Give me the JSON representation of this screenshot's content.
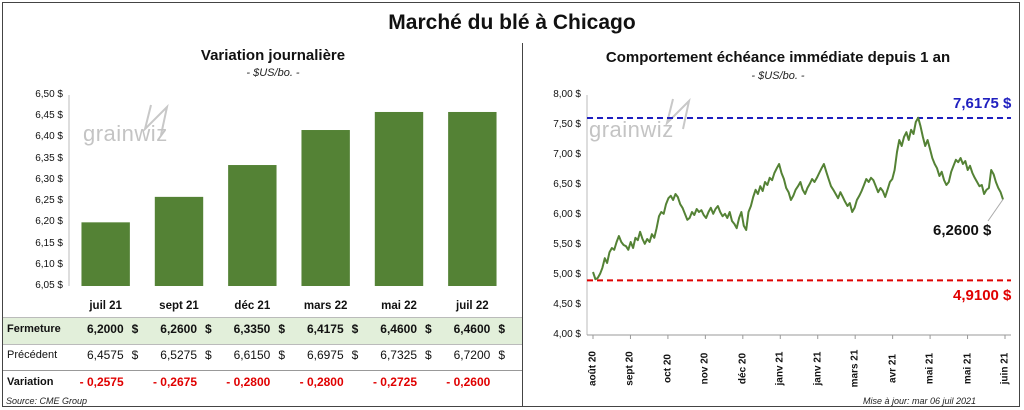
{
  "title": "Marché du blé à Chicago",
  "source": "Source: CME Group",
  "updated": "Mise à jour: mar 06 juil 2021",
  "watermark": "grainwiz",
  "colors": {
    "bar": "#548235",
    "line": "#548235",
    "high": "#1f1fbf",
    "low": "#e00000",
    "row_highlight": "#e2efda",
    "negative": "#e00000"
  },
  "chart_data": [
    {
      "type": "bar",
      "title": "Variation journalière",
      "subtitle": "- $US/bo. -",
      "categories": [
        "juil 21",
        "sept 21",
        "déc 21",
        "mars 22",
        "mai 22",
        "juil 22"
      ],
      "values": [
        6.2,
        6.26,
        6.335,
        6.4175,
        6.46,
        6.46
      ],
      "ylim": [
        6.05,
        6.5
      ],
      "yticks": [
        "6,05 $",
        "6,10 $",
        "6,15 $",
        "6,20 $",
        "6,25 $",
        "6,30 $",
        "6,35 $",
        "6,40 $",
        "6,45 $",
        "6,50 $"
      ],
      "table": {
        "rows": [
          {
            "label": "Fermeture",
            "values": [
              "6,2000",
              "6,2600",
              "6,3350",
              "6,4175",
              "6,4600",
              "6,4600"
            ],
            "unit": "$"
          },
          {
            "label": "Précédent",
            "values": [
              "6,4575",
              "6,5275",
              "6,6150",
              "6,6975",
              "6,7325",
              "6,7200"
            ],
            "unit": "$"
          },
          {
            "label": "Variation",
            "values": [
              "- 0,2575",
              "- 0,2675",
              "- 0,2800",
              "- 0,2800",
              "- 0,2725",
              "- 0,2600"
            ],
            "unit": ""
          }
        ]
      }
    },
    {
      "type": "line",
      "title": "Comportement  échéance immédiate depuis 1 an",
      "subtitle": "- $US/bo. -",
      "ylim": [
        4.0,
        8.0
      ],
      "yticks": [
        "4,00 $",
        "4,50 $",
        "5,00 $",
        "5,50 $",
        "6,00 $",
        "6,50 $",
        "7,00 $",
        "7,50 $",
        "8,00 $"
      ],
      "xticks": [
        "août 20",
        "sept 20",
        "oct 20",
        "nov 20",
        "déc 20",
        "janv 21",
        "janv 21",
        "mars 21",
        "avr 21",
        "mai 21",
        "mai 21",
        "juin 21"
      ],
      "high": {
        "value": 7.6175,
        "label": "7,6175 $"
      },
      "low": {
        "value": 4.91,
        "label": "4,9100 $"
      },
      "last": {
        "value": 6.26,
        "label": "6,2600 $"
      },
      "values": [
        5.05,
        4.93,
        4.95,
        5.02,
        5.12,
        5.28,
        5.2,
        5.38,
        5.45,
        5.42,
        5.55,
        5.65,
        5.55,
        5.5,
        5.48,
        5.42,
        5.55,
        5.45,
        5.62,
        5.58,
        5.72,
        5.6,
        5.52,
        5.6,
        5.55,
        5.68,
        5.62,
        5.78,
        5.98,
        6.05,
        6.02,
        6.18,
        6.28,
        6.32,
        6.25,
        6.35,
        6.3,
        6.18,
        6.12,
        6.02,
        5.92,
        5.95,
        6.05,
        6.0,
        6.1,
        6.05,
        6.08,
        6.0,
        5.95,
        6.05,
        6.12,
        6.02,
        6.1,
        6.15,
        6.05,
        5.98,
        6.02,
        5.95,
        6.05,
        5.9,
        5.85,
        5.78,
        5.95,
        6.05,
        5.82,
        5.75,
        6.05,
        6.15,
        6.3,
        6.42,
        6.35,
        6.48,
        6.4,
        6.55,
        6.5,
        6.62,
        6.58,
        6.7,
        6.78,
        6.85,
        6.7,
        6.6,
        6.45,
        6.38,
        6.25,
        6.32,
        6.42,
        6.48,
        6.55,
        6.42,
        6.35,
        6.45,
        6.52,
        6.6,
        6.55,
        6.62,
        6.7,
        6.78,
        6.85,
        6.72,
        6.6,
        6.48,
        6.42,
        6.35,
        6.28,
        6.38,
        6.3,
        6.22,
        6.15,
        6.2,
        6.05,
        6.12,
        6.25,
        6.32,
        6.4,
        6.5,
        6.6,
        6.55,
        6.62,
        6.58,
        6.48,
        6.38,
        6.45,
        6.4,
        6.3,
        6.42,
        6.55,
        6.6,
        6.75,
        7.05,
        7.25,
        7.15,
        7.3,
        7.38,
        7.25,
        7.42,
        7.35,
        7.55,
        7.62,
        7.48,
        7.3,
        7.15,
        7.25,
        7.1,
        6.95,
        6.85,
        6.78,
        6.65,
        6.72,
        6.58,
        6.5,
        6.55,
        6.72,
        6.82,
        6.92,
        6.88,
        6.95,
        6.85,
        6.9,
        6.75,
        6.82,
        6.7,
        6.62,
        6.55,
        6.48,
        6.5,
        6.35,
        6.42,
        6.45,
        6.75,
        6.68,
        6.55,
        6.45,
        6.38,
        6.26
      ]
    }
  ]
}
